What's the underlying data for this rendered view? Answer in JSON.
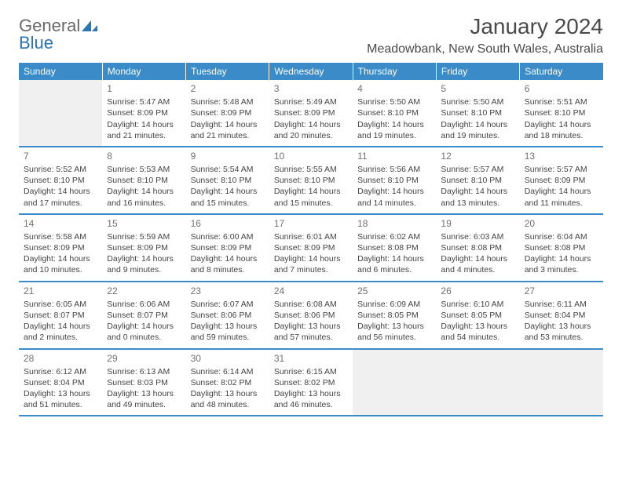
{
  "logo": {
    "word1": "General",
    "word2": "Blue"
  },
  "title": "January 2024",
  "location": "Meadowbank, New South Wales, Australia",
  "colors": {
    "header_bg": "#3b8bc9",
    "header_text": "#ffffff",
    "rule": "#3b8bc9",
    "blank_bg": "#f0f0f0",
    "text": "#444444",
    "daynum": "#707070",
    "logo_gray": "#6a6a6a",
    "logo_blue": "#2a74b8"
  },
  "typography": {
    "title_fontsize": 28,
    "location_fontsize": 16,
    "weekday_fontsize": 12,
    "cell_fontsize": 10.5,
    "daynum_fontsize": 12
  },
  "weekdays": [
    "Sunday",
    "Monday",
    "Tuesday",
    "Wednesday",
    "Thursday",
    "Friday",
    "Saturday"
  ],
  "weeks": [
    [
      null,
      {
        "day": "1",
        "sunrise": "Sunrise: 5:47 AM",
        "sunset": "Sunset: 8:09 PM",
        "day1": "Daylight: 14 hours",
        "day2": "and 21 minutes."
      },
      {
        "day": "2",
        "sunrise": "Sunrise: 5:48 AM",
        "sunset": "Sunset: 8:09 PM",
        "day1": "Daylight: 14 hours",
        "day2": "and 21 minutes."
      },
      {
        "day": "3",
        "sunrise": "Sunrise: 5:49 AM",
        "sunset": "Sunset: 8:09 PM",
        "day1": "Daylight: 14 hours",
        "day2": "and 20 minutes."
      },
      {
        "day": "4",
        "sunrise": "Sunrise: 5:50 AM",
        "sunset": "Sunset: 8:10 PM",
        "day1": "Daylight: 14 hours",
        "day2": "and 19 minutes."
      },
      {
        "day": "5",
        "sunrise": "Sunrise: 5:50 AM",
        "sunset": "Sunset: 8:10 PM",
        "day1": "Daylight: 14 hours",
        "day2": "and 19 minutes."
      },
      {
        "day": "6",
        "sunrise": "Sunrise: 5:51 AM",
        "sunset": "Sunset: 8:10 PM",
        "day1": "Daylight: 14 hours",
        "day2": "and 18 minutes."
      }
    ],
    [
      {
        "day": "7",
        "sunrise": "Sunrise: 5:52 AM",
        "sunset": "Sunset: 8:10 PM",
        "day1": "Daylight: 14 hours",
        "day2": "and 17 minutes."
      },
      {
        "day": "8",
        "sunrise": "Sunrise: 5:53 AM",
        "sunset": "Sunset: 8:10 PM",
        "day1": "Daylight: 14 hours",
        "day2": "and 16 minutes."
      },
      {
        "day": "9",
        "sunrise": "Sunrise: 5:54 AM",
        "sunset": "Sunset: 8:10 PM",
        "day1": "Daylight: 14 hours",
        "day2": "and 15 minutes."
      },
      {
        "day": "10",
        "sunrise": "Sunrise: 5:55 AM",
        "sunset": "Sunset: 8:10 PM",
        "day1": "Daylight: 14 hours",
        "day2": "and 15 minutes."
      },
      {
        "day": "11",
        "sunrise": "Sunrise: 5:56 AM",
        "sunset": "Sunset: 8:10 PM",
        "day1": "Daylight: 14 hours",
        "day2": "and 14 minutes."
      },
      {
        "day": "12",
        "sunrise": "Sunrise: 5:57 AM",
        "sunset": "Sunset: 8:10 PM",
        "day1": "Daylight: 14 hours",
        "day2": "and 13 minutes."
      },
      {
        "day": "13",
        "sunrise": "Sunrise: 5:57 AM",
        "sunset": "Sunset: 8:09 PM",
        "day1": "Daylight: 14 hours",
        "day2": "and 11 minutes."
      }
    ],
    [
      {
        "day": "14",
        "sunrise": "Sunrise: 5:58 AM",
        "sunset": "Sunset: 8:09 PM",
        "day1": "Daylight: 14 hours",
        "day2": "and 10 minutes."
      },
      {
        "day": "15",
        "sunrise": "Sunrise: 5:59 AM",
        "sunset": "Sunset: 8:09 PM",
        "day1": "Daylight: 14 hours",
        "day2": "and 9 minutes."
      },
      {
        "day": "16",
        "sunrise": "Sunrise: 6:00 AM",
        "sunset": "Sunset: 8:09 PM",
        "day1": "Daylight: 14 hours",
        "day2": "and 8 minutes."
      },
      {
        "day": "17",
        "sunrise": "Sunrise: 6:01 AM",
        "sunset": "Sunset: 8:09 PM",
        "day1": "Daylight: 14 hours",
        "day2": "and 7 minutes."
      },
      {
        "day": "18",
        "sunrise": "Sunrise: 6:02 AM",
        "sunset": "Sunset: 8:08 PM",
        "day1": "Daylight: 14 hours",
        "day2": "and 6 minutes."
      },
      {
        "day": "19",
        "sunrise": "Sunrise: 6:03 AM",
        "sunset": "Sunset: 8:08 PM",
        "day1": "Daylight: 14 hours",
        "day2": "and 4 minutes."
      },
      {
        "day": "20",
        "sunrise": "Sunrise: 6:04 AM",
        "sunset": "Sunset: 8:08 PM",
        "day1": "Daylight: 14 hours",
        "day2": "and 3 minutes."
      }
    ],
    [
      {
        "day": "21",
        "sunrise": "Sunrise: 6:05 AM",
        "sunset": "Sunset: 8:07 PM",
        "day1": "Daylight: 14 hours",
        "day2": "and 2 minutes."
      },
      {
        "day": "22",
        "sunrise": "Sunrise: 6:06 AM",
        "sunset": "Sunset: 8:07 PM",
        "day1": "Daylight: 14 hours",
        "day2": "and 0 minutes."
      },
      {
        "day": "23",
        "sunrise": "Sunrise: 6:07 AM",
        "sunset": "Sunset: 8:06 PM",
        "day1": "Daylight: 13 hours",
        "day2": "and 59 minutes."
      },
      {
        "day": "24",
        "sunrise": "Sunrise: 6:08 AM",
        "sunset": "Sunset: 8:06 PM",
        "day1": "Daylight: 13 hours",
        "day2": "and 57 minutes."
      },
      {
        "day": "25",
        "sunrise": "Sunrise: 6:09 AM",
        "sunset": "Sunset: 8:05 PM",
        "day1": "Daylight: 13 hours",
        "day2": "and 56 minutes."
      },
      {
        "day": "26",
        "sunrise": "Sunrise: 6:10 AM",
        "sunset": "Sunset: 8:05 PM",
        "day1": "Daylight: 13 hours",
        "day2": "and 54 minutes."
      },
      {
        "day": "27",
        "sunrise": "Sunrise: 6:11 AM",
        "sunset": "Sunset: 8:04 PM",
        "day1": "Daylight: 13 hours",
        "day2": "and 53 minutes."
      }
    ],
    [
      {
        "day": "28",
        "sunrise": "Sunrise: 6:12 AM",
        "sunset": "Sunset: 8:04 PM",
        "day1": "Daylight: 13 hours",
        "day2": "and 51 minutes."
      },
      {
        "day": "29",
        "sunrise": "Sunrise: 6:13 AM",
        "sunset": "Sunset: 8:03 PM",
        "day1": "Daylight: 13 hours",
        "day2": "and 49 minutes."
      },
      {
        "day": "30",
        "sunrise": "Sunrise: 6:14 AM",
        "sunset": "Sunset: 8:02 PM",
        "day1": "Daylight: 13 hours",
        "day2": "and 48 minutes."
      },
      {
        "day": "31",
        "sunrise": "Sunrise: 6:15 AM",
        "sunset": "Sunset: 8:02 PM",
        "day1": "Daylight: 13 hours",
        "day2": "and 46 minutes."
      },
      null,
      null,
      null
    ]
  ]
}
